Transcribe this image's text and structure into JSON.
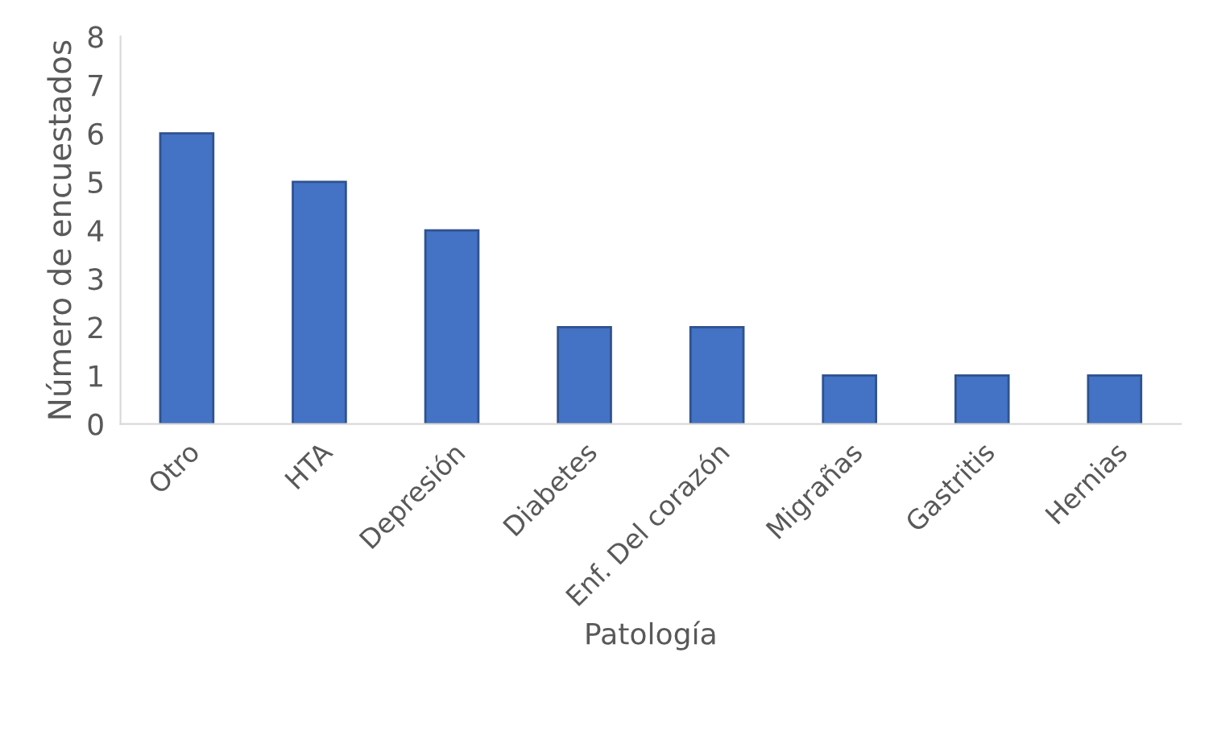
{
  "chart_data": {
    "type": "bar",
    "xlabel": "Patología",
    "ylabel": "Número de encuestados",
    "categories": [
      "Otro",
      "HTA",
      "Depresión",
      "Diabetes",
      "Enf. Del corazón",
      "Migrañas",
      "Gastritis",
      "Hernias"
    ],
    "values": [
      6,
      5,
      4,
      2,
      2,
      1,
      1,
      1
    ],
    "color": "#4472c4",
    "ylim": [
      0,
      8
    ],
    "yticks": [
      0,
      1,
      2,
      3,
      4,
      5,
      6,
      7,
      8
    ],
    "grid": false,
    "legend": false
  }
}
